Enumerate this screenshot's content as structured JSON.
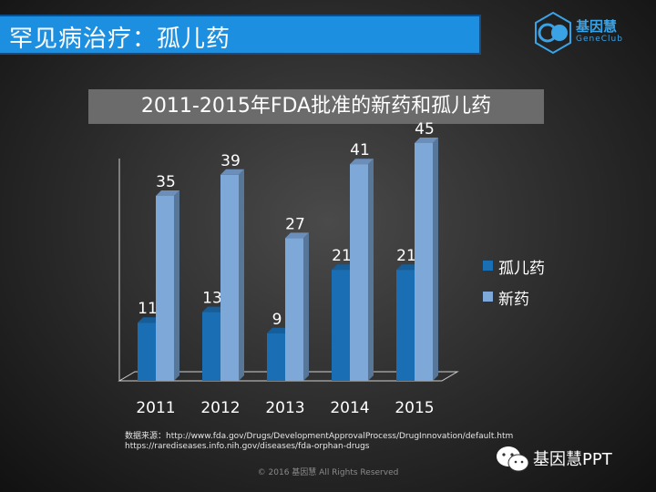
{
  "header": {
    "title": "罕见病治疗：孤儿药"
  },
  "logo": {
    "name": "基因慧",
    "sub": "GeneClub"
  },
  "chart_data": {
    "type": "bar",
    "title": "2011-2015年FDA批准的新药和孤儿药",
    "categories": [
      "2011",
      "2012",
      "2013",
      "2014",
      "2015"
    ],
    "series": [
      {
        "name": "孤儿药",
        "values": [
          11,
          13,
          9,
          21,
          21
        ],
        "color": "#1a6fb4"
      },
      {
        "name": "新药",
        "values": [
          35,
          39,
          27,
          41,
          45
        ],
        "color": "#7ea8d8"
      }
    ],
    "ylim": [
      0,
      50
    ],
    "xlabel": "",
    "ylabel": "",
    "grid": false,
    "legend": "right",
    "data_labels": true
  },
  "source": {
    "line1": "数据来源：http://www.fda.gov/Drugs/DevelopmentApprovalProcess/DrugInnovation/default.htm",
    "line2": "https://rarediseases.info.nih.gov/diseases/fda-orphan-drugs"
  },
  "wechat": {
    "label": "基因慧PPT"
  },
  "copyright": "© 2016 基因慧 All Rights Reserved"
}
